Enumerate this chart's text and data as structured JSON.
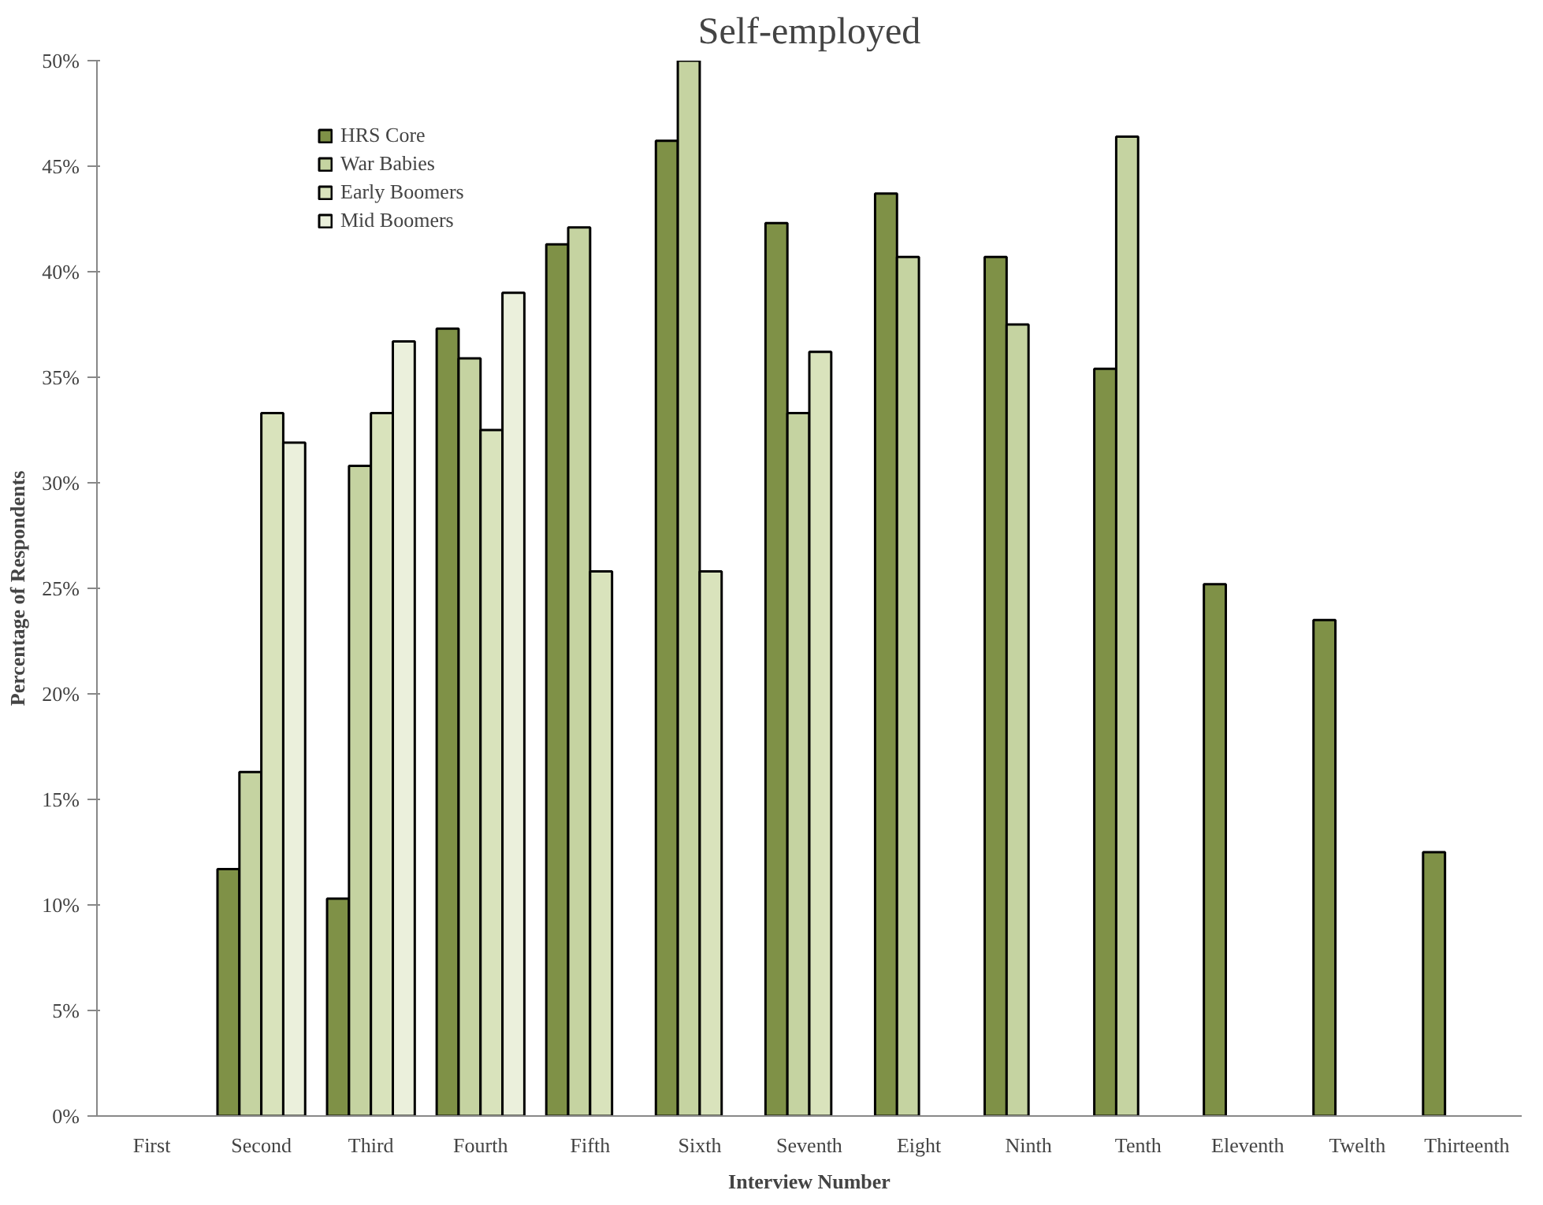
{
  "chart_data": {
    "type": "bar",
    "title": "Self-employed",
    "xlabel": "Interview Number",
    "ylabel": "Percentage of Respondents",
    "categories": [
      "First",
      "Second",
      "Third",
      "Fourth",
      "Fifth",
      "Sixth",
      "Seventh",
      "Eight",
      "Ninth",
      "Tenth",
      "Eleventh",
      "Twelth",
      "Thirteenth"
    ],
    "series": [
      {
        "name": "HRS Core",
        "color": "#7f9147",
        "values": [
          null,
          11.7,
          10.3,
          37.3,
          41.3,
          46.2,
          42.3,
          43.7,
          40.7,
          35.4,
          25.2,
          23.5,
          12.5
        ]
      },
      {
        "name": "War Babies",
        "color": "#c5d3a1",
        "values": [
          null,
          16.3,
          30.8,
          35.9,
          42.1,
          50.0,
          33.3,
          40.7,
          37.5,
          46.4,
          null,
          null,
          null
        ]
      },
      {
        "name": "Early Boomers",
        "color": "#d9e3bc",
        "values": [
          null,
          33.3,
          33.3,
          32.5,
          25.8,
          25.8,
          36.2,
          null,
          null,
          null,
          null,
          null,
          null
        ]
      },
      {
        "name": "Mid Boomers",
        "color": "#ebf0dc",
        "values": [
          null,
          31.9,
          36.7,
          39.0,
          null,
          null,
          null,
          null,
          null,
          null,
          null,
          null,
          null
        ]
      }
    ],
    "ylim": [
      0,
      50
    ],
    "yticks": [
      {
        "value": 0,
        "label": "0%"
      },
      {
        "value": 5,
        "label": "5%"
      },
      {
        "value": 10,
        "label": "10%"
      },
      {
        "value": 15,
        "label": "15%"
      },
      {
        "value": 20,
        "label": "20%"
      },
      {
        "value": 25,
        "label": "25%"
      },
      {
        "value": 30,
        "label": "30%"
      },
      {
        "value": 35,
        "label": "35%"
      },
      {
        "value": 40,
        "label": "40%"
      },
      {
        "value": 45,
        "label": "45%"
      },
      {
        "value": 50,
        "label": "50%"
      }
    ],
    "grid": false,
    "legend": "top left"
  }
}
